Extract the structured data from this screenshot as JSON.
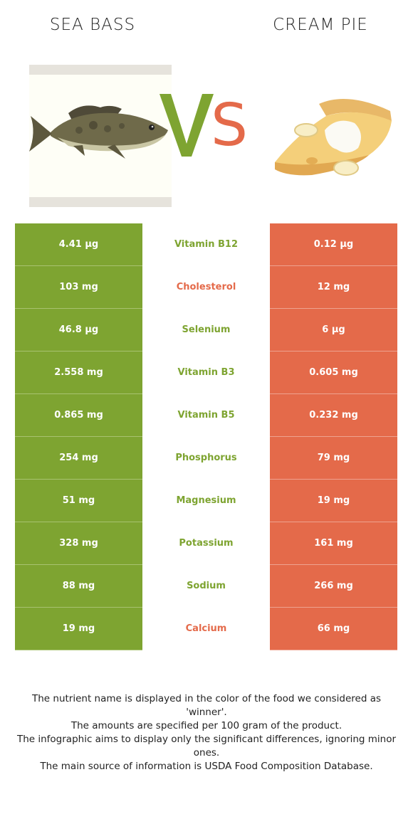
{
  "left_food": {
    "name": "SEA BASS",
    "color": "#7ea431"
  },
  "right_food": {
    "name": "CREAM PIE",
    "color": "#e46a4a"
  },
  "vs": {
    "v": "V",
    "s": "S"
  },
  "rows": [
    {
      "left": "4.41 µg",
      "nutrient": "Vitamin B12",
      "right": "0.12 µg",
      "winner": "left"
    },
    {
      "left": "103 mg",
      "nutrient": "Cholesterol",
      "right": "12 mg",
      "winner": "right"
    },
    {
      "left": "46.8 µg",
      "nutrient": "Selenium",
      "right": "6 µg",
      "winner": "left"
    },
    {
      "left": "2.558 mg",
      "nutrient": "Vitamin B3",
      "right": "0.605 mg",
      "winner": "left"
    },
    {
      "left": "0.865 mg",
      "nutrient": "Vitamin B5",
      "right": "0.232 mg",
      "winner": "left"
    },
    {
      "left": "254 mg",
      "nutrient": "Phosphorus",
      "right": "79 mg",
      "winner": "left"
    },
    {
      "left": "51 mg",
      "nutrient": "Magnesium",
      "right": "19 mg",
      "winner": "left"
    },
    {
      "left": "328 mg",
      "nutrient": "Potassium",
      "right": "161 mg",
      "winner": "left"
    },
    {
      "left": "88 mg",
      "nutrient": "Sodium",
      "right": "266 mg",
      "winner": "left"
    },
    {
      "left": "19 mg",
      "nutrient": "Calcium",
      "right": "66 mg",
      "winner": "right"
    }
  ],
  "footer": {
    "lines": [
      "The nutrient name is displayed in the color of the food we considered as 'winner'.",
      "The amounts are specified per 100 gram of the product.",
      "The infographic aims to display only the significant differences, ignoring minor ones.",
      "The main source of information is USDA Food Composition Database."
    ]
  }
}
